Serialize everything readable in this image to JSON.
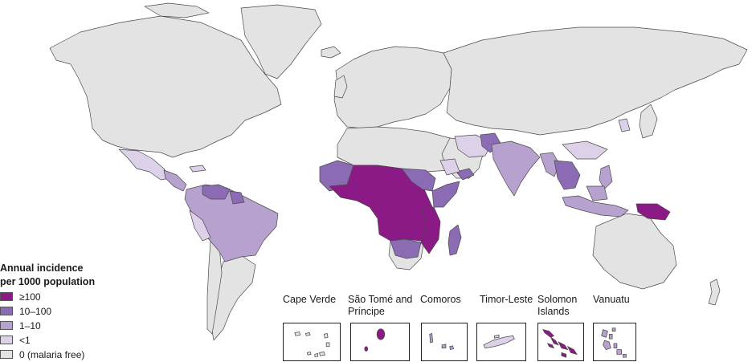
{
  "colors": {
    "ocean": "#ffffff",
    "border": "#4a4a4a",
    "cat_100": "#8c1a86",
    "cat_10_100": "#8b6bb4",
    "cat_1_10": "#b7a2cf",
    "cat_lt1": "#ddd0e9",
    "cat_0": "#e3e3e3"
  },
  "legend": {
    "title_line1": "Annual incidence",
    "title_line2": "per 1000 population",
    "items": [
      {
        "label": "≥100",
        "key": "cat_100"
      },
      {
        "label": "10–100",
        "key": "cat_10_100"
      },
      {
        "label": "1–10",
        "key": "cat_1_10"
      },
      {
        "label": "<1",
        "key": "cat_lt1"
      },
      {
        "label": "0 (malaria free)",
        "key": "cat_0"
      }
    ]
  },
  "insets": [
    {
      "name": "Cape Verde",
      "category": "cat_0"
    },
    {
      "name": "São Tomé and Príncipe",
      "line1": "São Tomé and",
      "line2": "Príncipe",
      "category": "cat_100"
    },
    {
      "name": "Comoros",
      "category": "cat_1_10"
    },
    {
      "name": "Timor-Leste",
      "category": "cat_lt1"
    },
    {
      "name": "Solomon Islands",
      "line1": "Solomon",
      "line2": "Islands",
      "category": "cat_100"
    },
    {
      "name": "Vanuatu",
      "category": "cat_1_10"
    }
  ]
}
